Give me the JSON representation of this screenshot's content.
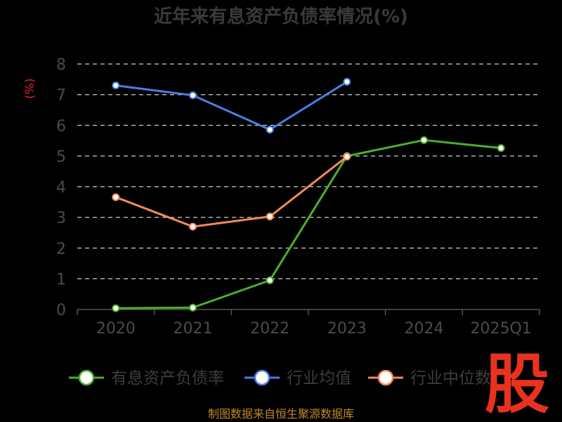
{
  "chart_data": {
    "type": "line",
    "title": "近年来有息资产负债率情况(%)",
    "ylabel": "(%)",
    "categories": [
      "2020",
      "2021",
      "2022",
      "2023",
      "2024",
      "2025Q1"
    ],
    "ylim": [
      0,
      8
    ],
    "yticks": [
      0,
      1,
      2,
      3,
      4,
      5,
      6,
      7,
      8
    ],
    "grid": true,
    "legend": "bottom",
    "series": [
      {
        "name": "有息资产负债率",
        "color": "#4caf2a",
        "values": [
          0.04,
          0.06,
          0.95,
          5.0,
          5.52,
          5.26
        ]
      },
      {
        "name": "行业均值",
        "color": "#4a7fe0",
        "values": [
          7.3,
          6.98,
          5.86,
          7.42,
          null,
          null
        ]
      },
      {
        "name": "行业中位数",
        "color": "#f28a5b",
        "values": [
          3.66,
          2.7,
          3.03,
          4.98,
          null,
          null
        ]
      }
    ]
  },
  "footer": {
    "source": "制图数据来自恒生聚源数据库",
    "logo_text": "股"
  }
}
